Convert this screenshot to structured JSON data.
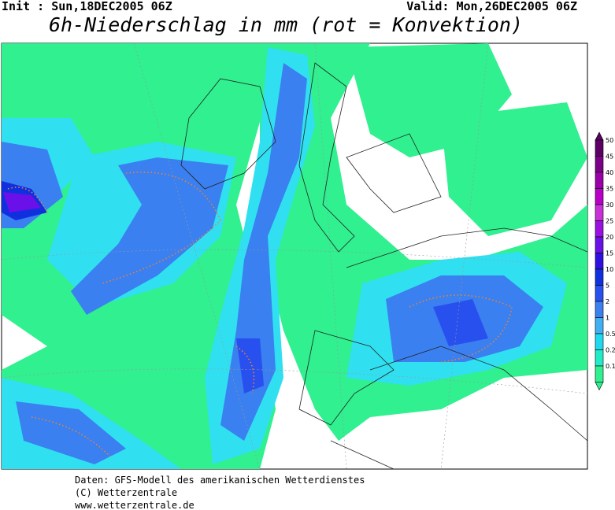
{
  "header": {
    "init": "Init : Sun,18DEC2005 06Z",
    "valid": "Valid: Mon,26DEC2005 06Z",
    "title": "6h-Niederschlag in mm (rot = Konvektion)"
  },
  "legend": {
    "labels": [
      "50",
      "45",
      "40",
      "35",
      "30",
      "25",
      "20",
      "15",
      "10",
      "5",
      "2",
      "1",
      "0.5",
      "0.2",
      "0.1"
    ],
    "colors": [
      "#5c0066",
      "#7a0088",
      "#9a00a8",
      "#b800c8",
      "#c830d8",
      "#9a10e0",
      "#6a10e8",
      "#3010e0",
      "#1030e0",
      "#2850ee",
      "#3a80f0",
      "#40b0f2",
      "#20d8f0",
      "#20ecc8",
      "#30f090"
    ]
  },
  "footer": {
    "lines": [
      "Daten: GFS-Modell des amerikanischen Wetterdienstes",
      "(C) Wetterzentrale",
      "www.wetterzentrale.de"
    ]
  }
}
